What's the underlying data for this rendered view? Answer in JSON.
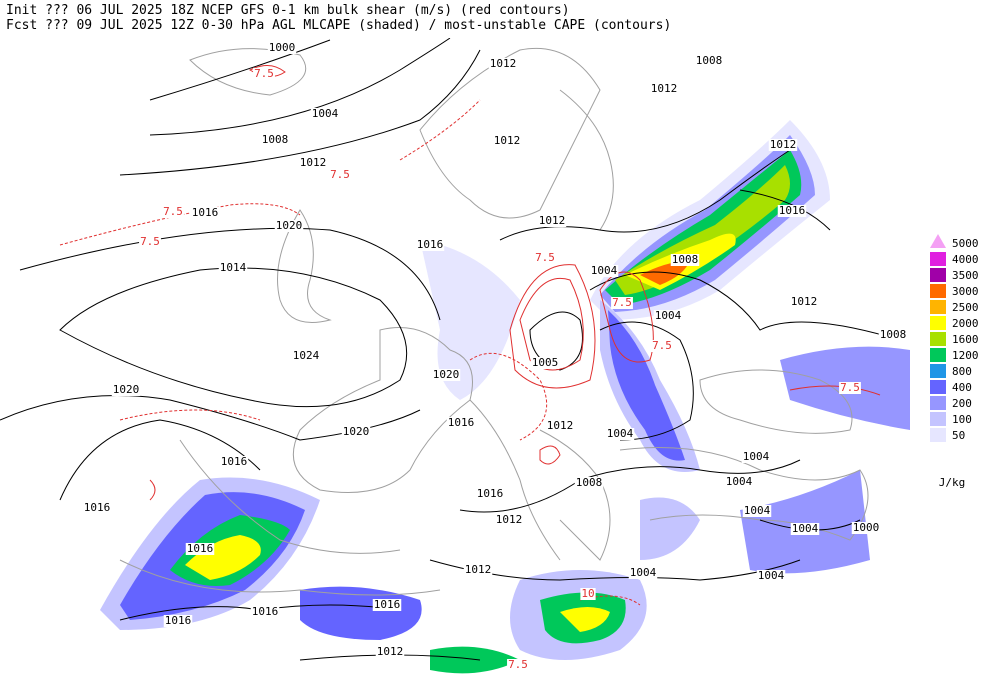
{
  "header": {
    "line1": "Init  ??? 06 JUL 2025 18Z  NCEP GFS 0-1 km bulk shear (m/s) (red contours)",
    "line2": "Fcst ??? 09 JUL 2025 12Z  0-30 hPa AGL MLCAPE (shaded) / most-unstable CAPE (contours)"
  },
  "legend": {
    "items": [
      {
        "label": "5000",
        "color": "#f4a0f4"
      },
      {
        "label": "4000",
        "color": "#e020e0"
      },
      {
        "label": "3500",
        "color": "#a000a8"
      },
      {
        "label": "3000",
        "color": "#ff6a00"
      },
      {
        "label": "2500",
        "color": "#ffb400"
      },
      {
        "label": "2000",
        "color": "#ffff00"
      },
      {
        "label": "1600",
        "color": "#a8e000"
      },
      {
        "label": "1200",
        "color": "#00c85a"
      },
      {
        "label": "800",
        "color": "#2096e6"
      },
      {
        "label": "400",
        "color": "#6464ff"
      },
      {
        "label": "200",
        "color": "#9696ff"
      },
      {
        "label": "100",
        "color": "#c4c4ff"
      },
      {
        "label": "50",
        "color": "#e6e6ff"
      }
    ],
    "unit": "J/kg"
  },
  "isobar_labels": [
    "1000",
    "1012",
    "1008",
    "1012",
    "1004",
    "1008",
    "1012",
    "1012",
    "1012",
    "1016",
    "1016",
    "1020",
    "1012",
    "1016",
    "1014",
    "1004",
    "1008",
    "1012",
    "1004",
    "1024",
    "1005",
    "1020",
    "1008",
    "1020",
    "1016",
    "1020",
    "1012",
    "1004",
    "1016",
    "1004",
    "1008",
    "1004",
    "1016",
    "1016",
    "1012",
    "1004",
    "1004",
    "1000",
    "1016",
    "1012",
    "1004",
    "1004",
    "1016",
    "1016",
    "1016",
    "1012"
  ],
  "shear_labels": [
    "7.5",
    "7.5",
    "7.5",
    "7.5",
    "7.5",
    "7.5",
    "7.5",
    "10",
    "7.5",
    "7.5"
  ]
}
